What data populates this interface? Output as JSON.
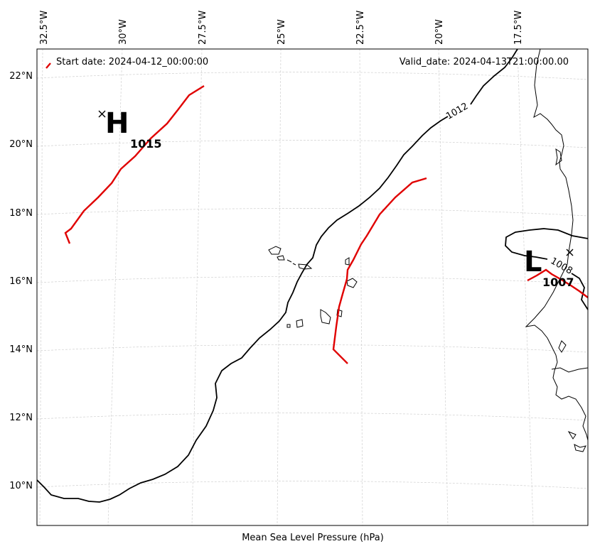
{
  "map": {
    "start_date": "Start date: 2024-04-12_00:00:00",
    "valid_date": "Valid_date: 2024-04-13T21:00:00.00",
    "xlabel": "Mean Sea Level Pressure (hPa)",
    "lon_labels": [
      "32.5°W",
      "30°W",
      "27.5°W",
      "25°W",
      "22.5°W",
      "20°W",
      "17.5°W"
    ],
    "lat_labels": [
      "22°N",
      "20°N",
      "18°N",
      "16°N",
      "14°N",
      "12°N",
      "10°N"
    ],
    "high": {
      "letter": "H",
      "value": "1015"
    },
    "low": {
      "letter": "L",
      "value": "1007"
    },
    "isobar_labels": [
      "1012",
      "1008"
    ],
    "colors": {
      "isobar": "#000000",
      "front": "#e00000",
      "grid": "#d0d0d0"
    }
  }
}
